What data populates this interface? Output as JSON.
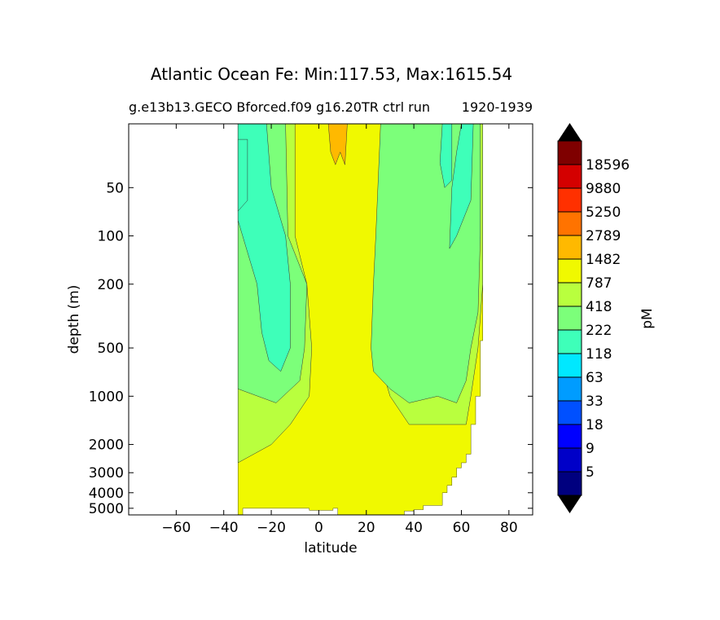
{
  "chart_data": {
    "type": "heatmap",
    "title": "Atlantic Ocean Fe: Min:117.53, Max:1615.54",
    "subtitle_left": "g.e13b13.GECO Bforced.f09 g16.20TR ctrl run",
    "subtitle_right": "1920-1939",
    "xlabel": "latitude",
    "ylabel": "depth (m)",
    "xlim": [
      -80,
      90
    ],
    "ylim": [
      5500,
      20
    ],
    "y_scale": "log",
    "x_ticks": [
      -60,
      -40,
      -20,
      0,
      20,
      40,
      60,
      80
    ],
    "x_tick_labels": [
      "−60",
      "−40",
      "−20",
      "0",
      "20",
      "40",
      "60",
      "80"
    ],
    "y_ticks": [
      50,
      100,
      200,
      500,
      1000,
      2000,
      3000,
      4000,
      5000
    ],
    "y_tick_labels": [
      "50",
      "100",
      "200",
      "500",
      "1000",
      "2000",
      "3000",
      "4000",
      "5000"
    ],
    "colorbar": {
      "label": "pM",
      "levels": [
        "5",
        "9",
        "18",
        "33",
        "63",
        "118",
        "222",
        "418",
        "787",
        "1482",
        "2789",
        "5250",
        "9880",
        "18596"
      ],
      "colors": [
        "#00007f",
        "#0000c8",
        "#0000ff",
        "#0050ff",
        "#009cff",
        "#00e8ff",
        "#3effb9",
        "#7cff7a",
        "#b9ff3e",
        "#f0f900",
        "#ffb900",
        "#ff7300",
        "#ff3000",
        "#d40000",
        "#7f0000"
      ],
      "extend": "both",
      "extend_color": "#000000"
    },
    "regions": [
      {
        "level": 787,
        "color": "#b9ff3e",
        "points": [
          [
            -34,
            20
          ],
          [
            -10,
            20
          ],
          [
            -10,
            100
          ],
          [
            -5,
            200
          ],
          [
            -3,
            500
          ],
          [
            -4,
            1000
          ],
          [
            -12,
            1500
          ],
          [
            -20,
            2000
          ],
          [
            -34,
            2600
          ]
        ]
      },
      {
        "level": 787,
        "color": "#b9ff3e",
        "points": [
          [
            28,
            20
          ],
          [
            69,
            20
          ],
          [
            69,
            200
          ],
          [
            67,
            500
          ],
          [
            64,
            1000
          ],
          [
            62,
            1500
          ],
          [
            38,
            1500
          ],
          [
            30,
            1000
          ],
          [
            24,
            500
          ],
          [
            25,
            100
          ]
        ]
      },
      {
        "level": 418,
        "color": "#7cff7a",
        "points": [
          [
            -34,
            20
          ],
          [
            -14,
            20
          ],
          [
            -13,
            100
          ],
          [
            -5,
            200
          ],
          [
            -6,
            500
          ],
          [
            -8,
            800
          ],
          [
            -18,
            1100
          ],
          [
            -34,
            900
          ]
        ]
      },
      {
        "level": 418,
        "color": "#7cff7a",
        "points": [
          [
            44,
            20
          ],
          [
            68,
            20
          ],
          [
            68,
            100
          ],
          [
            67,
            300
          ],
          [
            64,
            500
          ],
          [
            62,
            800
          ],
          [
            58,
            1100
          ],
          [
            50,
            1000
          ],
          [
            38,
            1100
          ],
          [
            30,
            900
          ],
          [
            23,
            700
          ],
          [
            22,
            500
          ],
          [
            23,
            200
          ],
          [
            24,
            100
          ],
          [
            26,
            20
          ]
        ]
      },
      {
        "level": 222,
        "color": "#3effb9",
        "points": [
          [
            -34,
            20
          ],
          [
            -22,
            20
          ],
          [
            -20,
            50
          ],
          [
            -14,
            100
          ],
          [
            -12,
            200
          ],
          [
            -12,
            500
          ],
          [
            -16,
            700
          ],
          [
            -21,
            600
          ],
          [
            -24,
            400
          ],
          [
            -26,
            200
          ],
          [
            -34,
            80
          ]
        ]
      },
      {
        "level": 222,
        "color": "#3effb9",
        "points": [
          [
            -34,
            25
          ],
          [
            -30,
            25
          ],
          [
            -30,
            60
          ],
          [
            -34,
            70
          ]
        ]
      },
      {
        "level": 222,
        "color": "#3effb9",
        "points": [
          [
            60,
            20
          ],
          [
            65,
            20
          ],
          [
            64,
            60
          ],
          [
            58,
            100
          ],
          [
            55,
            120
          ],
          [
            56,
            50
          ],
          [
            58,
            30
          ]
        ]
      },
      {
        "level": 222,
        "color": "#3effb9",
        "points": [
          [
            52,
            20
          ],
          [
            56,
            20
          ],
          [
            56,
            45
          ],
          [
            53,
            50
          ],
          [
            51,
            35
          ]
        ]
      },
      {
        "level": 1482,
        "color": "#ffb900",
        "points": [
          [
            4,
            20
          ],
          [
            12,
            20
          ],
          [
            11,
            36
          ],
          [
            9,
            30
          ],
          [
            7,
            36
          ],
          [
            5,
            30
          ]
        ]
      }
    ],
    "seafloor_steps": [
      {
        "lat": -34,
        "depth": 5500
      },
      {
        "lat": -32,
        "depth": 5000
      },
      {
        "lat": -4,
        "depth": 5150
      },
      {
        "lat": 6,
        "depth": 5000
      },
      {
        "lat": 8,
        "depth": 5500
      },
      {
        "lat": 35,
        "depth": 5500
      },
      {
        "lat": 36,
        "depth": 5200
      },
      {
        "lat": 40,
        "depth": 5100
      },
      {
        "lat": 44,
        "depth": 4800
      },
      {
        "lat": 52,
        "depth": 4000
      },
      {
        "lat": 54,
        "depth": 3600
      },
      {
        "lat": 56,
        "depth": 3200
      },
      {
        "lat": 58,
        "depth": 2800
      },
      {
        "lat": 60,
        "depth": 2600
      },
      {
        "lat": 62,
        "depth": 2300
      },
      {
        "lat": 64,
        "depth": 1500
      },
      {
        "lat": 66,
        "depth": 1000
      },
      {
        "lat": 68,
        "depth": 450
      },
      {
        "lat": 69,
        "depth": 200
      }
    ]
  }
}
